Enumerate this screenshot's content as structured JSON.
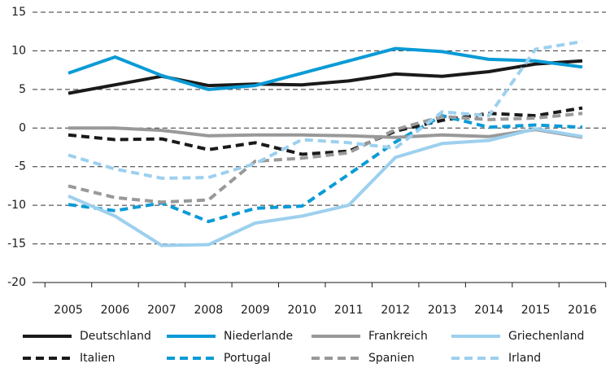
{
  "chart_data": {
    "type": "line",
    "categories": [
      "2005",
      "2006",
      "2007",
      "2008",
      "2009",
      "2010",
      "2011",
      "2012",
      "2013",
      "2014",
      "2015",
      "2016"
    ],
    "ylim": [
      -20,
      15
    ],
    "yticks": [
      -20,
      -15,
      -10,
      -5,
      0,
      5,
      10,
      15
    ],
    "grid": true,
    "series": [
      {
        "name": "Deutschland",
        "color": "#1a1a1a",
        "dashed": false,
        "values": [
          4.5,
          5.6,
          6.7,
          5.5,
          5.7,
          5.6,
          6.1,
          7.0,
          6.7,
          7.3,
          8.3,
          8.7
        ]
      },
      {
        "name": "Italien",
        "color": "#1a1a1a",
        "dashed": true,
        "values": [
          -0.9,
          -1.5,
          -1.4,
          -2.8,
          -1.9,
          -3.4,
          -3.0,
          -0.4,
          1.0,
          1.9,
          1.6,
          2.6
        ]
      },
      {
        "name": "Niederlande",
        "color": "#0a9bd6",
        "dashed": false,
        "values": [
          7.1,
          9.2,
          6.8,
          5.0,
          5.5,
          7.1,
          8.7,
          10.3,
          9.9,
          8.9,
          8.7,
          7.9
        ]
      },
      {
        "name": "Portugal",
        "color": "#0a9bd6",
        "dashed": true,
        "values": [
          -9.9,
          -10.7,
          -9.7,
          -12.1,
          -10.4,
          -10.1,
          -6.0,
          -1.8,
          1.6,
          0.1,
          0.4,
          0.1
        ]
      },
      {
        "name": "Frankreich",
        "color": "#999999",
        "dashed": false,
        "values": [
          0.0,
          0.0,
          -0.3,
          -1.0,
          -0.9,
          -0.9,
          -1.0,
          -1.2,
          -0.9,
          -1.1,
          -0.2,
          -1.2
        ]
      },
      {
        "name": "Spanien",
        "color": "#999999",
        "dashed": true,
        "values": [
          -7.5,
          -9.0,
          -9.6,
          -9.3,
          -4.3,
          -3.9,
          -3.2,
          -0.2,
          1.5,
          1.1,
          1.3,
          1.9
        ]
      },
      {
        "name": "Griechenland",
        "color": "#9dd0ee",
        "dashed": false,
        "values": [
          -8.8,
          -11.4,
          -15.2,
          -15.1,
          -12.3,
          -11.4,
          -10.0,
          -3.8,
          -2.0,
          -1.6,
          -0.1,
          -1.1
        ]
      },
      {
        "name": "Irland",
        "color": "#9dd0ee",
        "dashed": true,
        "values": [
          -3.5,
          -5.3,
          -6.5,
          -6.4,
          -4.6,
          -1.5,
          -1.9,
          -2.6,
          2.1,
          1.6,
          10.2,
          11.2
        ]
      }
    ]
  }
}
